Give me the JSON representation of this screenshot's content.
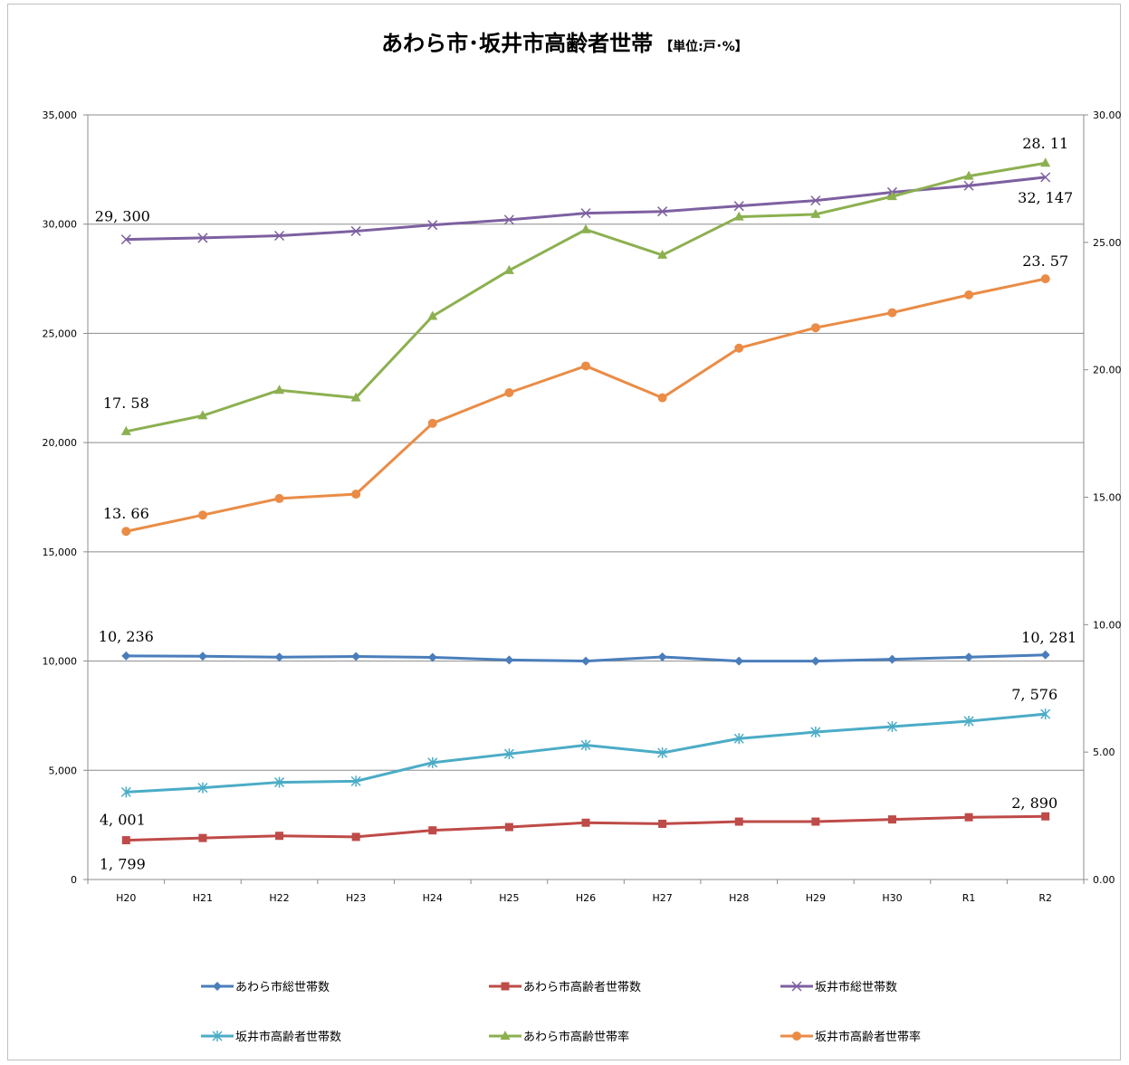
{
  "chart_data": {
    "type": "line",
    "title": "あわら市･坂井市高齢者世帯",
    "unit_note": "【単位:戸･%】",
    "categories": [
      "H20",
      "H21",
      "H22",
      "H23",
      "H24",
      "H25",
      "H26",
      "H27",
      "H28",
      "H29",
      "H30",
      "R1",
      "R2"
    ],
    "left_axis": {
      "min": 0,
      "max": 35000,
      "ticks": [
        "0",
        "5,000",
        "10,000",
        "15,000",
        "20,000",
        "25,000",
        "30,000",
        "35,000"
      ]
    },
    "right_axis": {
      "min": 0,
      "max": 30,
      "ticks": [
        "0.00",
        "5.00",
        "10.00",
        "15.00",
        "20.00",
        "25.00",
        "30.00"
      ]
    },
    "grid": true,
    "legend_position": "bottom",
    "series": [
      {
        "name": "あわら市総世帯数",
        "axis": "left",
        "color": "#4a7ebb",
        "marker": "diamond",
        "values": [
          10236,
          10220,
          10180,
          10210,
          10170,
          10050,
          10000,
          10190,
          10000,
          10000,
          10080,
          10180,
          10281
        ]
      },
      {
        "name": "あわら市高齢者世帯数",
        "axis": "left",
        "color": "#be4b48",
        "marker": "square",
        "values": [
          1799,
          1900,
          2000,
          1950,
          2250,
          2400,
          2600,
          2550,
          2650,
          2650,
          2750,
          2850,
          2890
        ]
      },
      {
        "name": "坂井市総世帯数",
        "axis": "left",
        "color": "#7d60a0",
        "marker": "x",
        "values": [
          29300,
          29370,
          29470,
          29680,
          29960,
          30200,
          30500,
          30580,
          30830,
          31080,
          31460,
          31760,
          32147
        ]
      },
      {
        "name": "坂井市高齢者世帯数",
        "axis": "left",
        "color": "#4bacc6",
        "marker": "star",
        "values": [
          4001,
          4200,
          4450,
          4500,
          5350,
          5750,
          6150,
          5800,
          6450,
          6750,
          7000,
          7250,
          7576
        ]
      },
      {
        "name": "あわら市高齢世帯率",
        "axis": "right",
        "color": "#8cb050",
        "marker": "triangle",
        "values": [
          17.58,
          18.2,
          19.2,
          18.9,
          22.1,
          23.9,
          25.5,
          24.5,
          26.0,
          26.1,
          26.8,
          27.6,
          28.11
        ]
      },
      {
        "name": "坂井市高齢者世帯率",
        "axis": "right",
        "color": "#ea8c46",
        "marker": "circle",
        "values": [
          13.66,
          14.3,
          14.95,
          15.12,
          17.9,
          19.1,
          20.15,
          18.9,
          20.85,
          21.65,
          22.24,
          22.94,
          23.57
        ]
      }
    ],
    "annotations": [
      {
        "series": 0,
        "index": 0,
        "text": "10, 236"
      },
      {
        "series": 0,
        "index": 12,
        "text": "10, 281"
      },
      {
        "series": 1,
        "index": 0,
        "text": "1, 799"
      },
      {
        "series": 1,
        "index": 12,
        "text": "2, 890"
      },
      {
        "series": 2,
        "index": 0,
        "text": "29, 300"
      },
      {
        "series": 2,
        "index": 12,
        "text": "32, 147"
      },
      {
        "series": 3,
        "index": 0,
        "text": "4, 001"
      },
      {
        "series": 3,
        "index": 12,
        "text": "7, 576"
      },
      {
        "series": 4,
        "index": 0,
        "text": "17. 58"
      },
      {
        "series": 4,
        "index": 12,
        "text": "28. 11"
      },
      {
        "series": 5,
        "index": 0,
        "text": "13. 66"
      },
      {
        "series": 5,
        "index": 12,
        "text": "23. 57"
      }
    ]
  }
}
